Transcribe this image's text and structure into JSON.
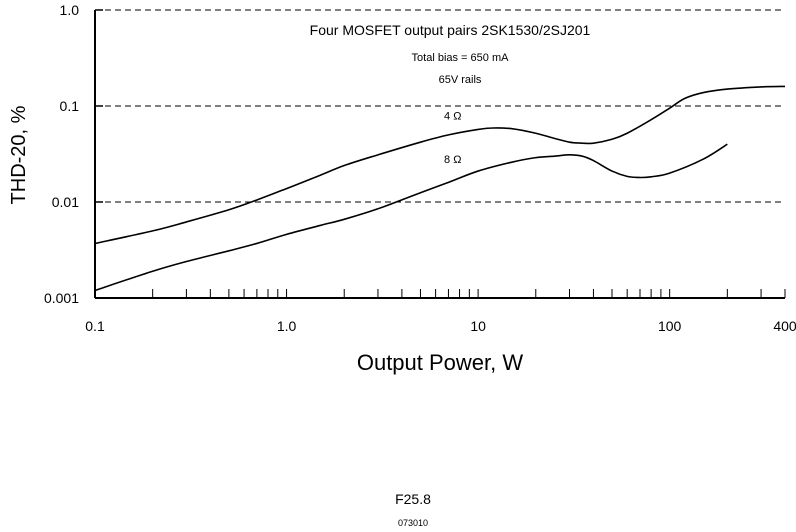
{
  "chart_data": {
    "type": "line",
    "annotations": {
      "heading": "Four MOSFET output pairs 2SK1530/2SJ201",
      "bias": "Total bias = 650 mA",
      "rails": "65V rails"
    },
    "xlabel": "Output Power, W",
    "ylabel": "THD-20, %",
    "x_scale": "log",
    "y_scale": "log",
    "xlim": [
      0.1,
      400
    ],
    "ylim": [
      0.001,
      1.0
    ],
    "x_tick_labels": [
      {
        "value": 0.1,
        "label": "0.1"
      },
      {
        "value": 1,
        "label": "1.0"
      },
      {
        "value": 10,
        "label": "10"
      },
      {
        "value": 100,
        "label": "100"
      },
      {
        "value": 400,
        "label": "400"
      }
    ],
    "y_tick_labels": [
      {
        "value": 0.001,
        "label": "0.001"
      },
      {
        "value": 0.01,
        "label": "0.01"
      },
      {
        "value": 0.1,
        "label": "0.1"
      },
      {
        "value": 1.0,
        "label": "1.0"
      }
    ],
    "grid": "dashed horizontal lines at 0.01, 0.1 and 1.0",
    "series": [
      {
        "name": "4 Ω",
        "label_at": [
          11,
          0.08
        ],
        "x": [
          0.1,
          0.2,
          0.3,
          0.5,
          0.7,
          1.0,
          1.5,
          2,
          3,
          5,
          7,
          10,
          12,
          15,
          20,
          25,
          30,
          35,
          40,
          50,
          60,
          80,
          100,
          120,
          150,
          200,
          300,
          400
        ],
        "y": [
          0.0037,
          0.005,
          0.0062,
          0.0083,
          0.0105,
          0.0138,
          0.019,
          0.024,
          0.031,
          0.042,
          0.05,
          0.057,
          0.059,
          0.058,
          0.052,
          0.046,
          0.042,
          0.041,
          0.041,
          0.045,
          0.052,
          0.072,
          0.095,
          0.12,
          0.138,
          0.15,
          0.158,
          0.16
        ]
      },
      {
        "name": "8 Ω",
        "label_at": [
          11,
          0.028
        ],
        "x": [
          0.1,
          0.2,
          0.3,
          0.5,
          0.7,
          1.0,
          1.5,
          2,
          3,
          5,
          7,
          10,
          15,
          20,
          25,
          30,
          35,
          40,
          50,
          60,
          70,
          80,
          100,
          150,
          200
        ],
        "y": [
          0.0012,
          0.0019,
          0.0024,
          0.0031,
          0.0037,
          0.0046,
          0.0057,
          0.0066,
          0.0085,
          0.0125,
          0.016,
          0.021,
          0.026,
          0.029,
          0.03,
          0.031,
          0.03,
          0.027,
          0.021,
          0.0185,
          0.018,
          0.0183,
          0.02,
          0.028,
          0.04
        ]
      }
    ]
  },
  "figure": {
    "id": "F25.8",
    "code": "073010"
  },
  "colors": {
    "line": "#000000",
    "background": "#ffffff"
  }
}
